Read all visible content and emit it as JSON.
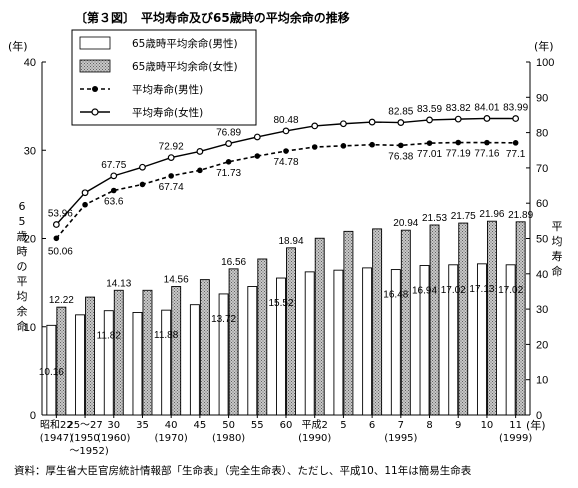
{
  "title": "〔第３図〕　平均寿命及び65歳時の平均余命の推移",
  "source": "資料：厚生省大臣官房統計情報部「生命表」（完全生命表）、ただし、平成10、11年は簡易生命表",
  "axis": {
    "left_unit": "(年)",
    "right_unit": "(年)",
    "x_unit": "(年)",
    "left_label": "65歳時の平均余命",
    "right_label": "平均寿命"
  },
  "legend": [
    {
      "label": "65歳時平均余命(男性)"
    },
    {
      "label": "65歳時平均余命(女性)"
    },
    {
      "label": "平均寿命(男性)"
    },
    {
      "label": "平均寿命(女性)"
    }
  ],
  "colors": {
    "male_bar": "#ffffff",
    "female_bar_pattern": "#9a9a9a",
    "line": "#000000"
  },
  "chart_data": {
    "type": "bar+line",
    "categories": [
      {
        "top": "昭和22",
        "mid": "(1947)",
        "bot": ""
      },
      {
        "top": "25〜27",
        "mid": "(1950",
        "bot": "〜1952)"
      },
      {
        "top": "30",
        "mid": "(1960)",
        "bot": ""
      },
      {
        "top": "35",
        "mid": "",
        "bot": ""
      },
      {
        "top": "40",
        "mid": "(1970)",
        "bot": ""
      },
      {
        "top": "45",
        "mid": "",
        "bot": ""
      },
      {
        "top": "50",
        "mid": "(1980)",
        "bot": ""
      },
      {
        "top": "55",
        "mid": "",
        "bot": ""
      },
      {
        "top": "60",
        "mid": "",
        "bot": ""
      },
      {
        "top": "平成2",
        "mid": "(1990)",
        "bot": ""
      },
      {
        "top": "5",
        "mid": "",
        "bot": ""
      },
      {
        "top": "6",
        "mid": "",
        "bot": ""
      },
      {
        "top": "7",
        "mid": "(1995)",
        "bot": ""
      },
      {
        "top": "8",
        "mid": "",
        "bot": ""
      },
      {
        "top": "9",
        "mid": "",
        "bot": ""
      },
      {
        "top": "10",
        "mid": "",
        "bot": ""
      },
      {
        "top": "11",
        "mid": "(1999)",
        "bot": ""
      }
    ],
    "y_left": {
      "min": 0,
      "max": 40,
      "ticks": [
        0,
        10,
        20,
        30,
        40
      ]
    },
    "y_right": {
      "min": 0,
      "max": 100,
      "ticks": [
        0,
        10,
        20,
        30,
        40,
        50,
        60,
        70,
        80,
        90,
        100
      ]
    },
    "series": [
      {
        "name": "65歳時平均余命(男性)",
        "kind": "bar",
        "axis": "left",
        "values": [
          10.16,
          11.35,
          11.82,
          11.62,
          11.88,
          12.5,
          13.72,
          14.56,
          15.52,
          16.22,
          16.41,
          16.67,
          16.48,
          16.94,
          17.02,
          17.13,
          17.02
        ],
        "labels": [
          "10.16",
          "",
          "11.82",
          "",
          "11.88",
          "",
          "13.72",
          "",
          "15.52",
          "",
          "",
          "",
          "16.48",
          "16.94",
          "17.02",
          "17.13",
          "17.02"
        ]
      },
      {
        "name": "65歳時平均余命(女性)",
        "kind": "bar",
        "axis": "left",
        "values": [
          12.22,
          13.36,
          14.13,
          14.13,
          14.56,
          15.34,
          16.56,
          17.68,
          18.94,
          20.03,
          20.81,
          21.09,
          20.94,
          21.53,
          21.75,
          21.96,
          21.89
        ],
        "labels": [
          "12.22",
          "",
          "14.13",
          "",
          "14.56",
          "",
          "16.56",
          "",
          "18.94",
          "",
          "",
          "",
          "20.94",
          "21.53",
          "21.75",
          "21.96",
          "21.89"
        ]
      },
      {
        "name": "平均寿命(男性)",
        "kind": "line",
        "style": "dashed",
        "axis": "right",
        "values": [
          50.06,
          59.57,
          63.6,
          65.32,
          67.74,
          69.31,
          71.73,
          73.35,
          74.78,
          75.92,
          76.25,
          76.57,
          76.38,
          77.01,
          77.19,
          77.16,
          77.1
        ],
        "labels": [
          "50.06",
          "",
          "63.6",
          "",
          "67.74",
          "",
          "71.73",
          "",
          "74.78",
          "",
          "",
          "",
          "76.38",
          "77.01",
          "77.19",
          "77.16",
          "77.1"
        ]
      },
      {
        "name": "平均寿命(女性)",
        "kind": "line",
        "style": "solid",
        "axis": "right",
        "values": [
          53.96,
          62.97,
          67.75,
          70.19,
          72.92,
          74.66,
          76.89,
          78.76,
          80.48,
          81.9,
          82.51,
          82.98,
          82.85,
          83.59,
          83.82,
          84.01,
          83.99
        ],
        "labels": [
          "53.96",
          "",
          "67.75",
          "",
          "72.92",
          "",
          "76.89",
          "",
          "80.48",
          "",
          "",
          "",
          "82.85",
          "83.59",
          "83.82",
          "84.01",
          "83.99"
        ]
      }
    ],
    "grid": false,
    "legend_position": "top-left"
  }
}
